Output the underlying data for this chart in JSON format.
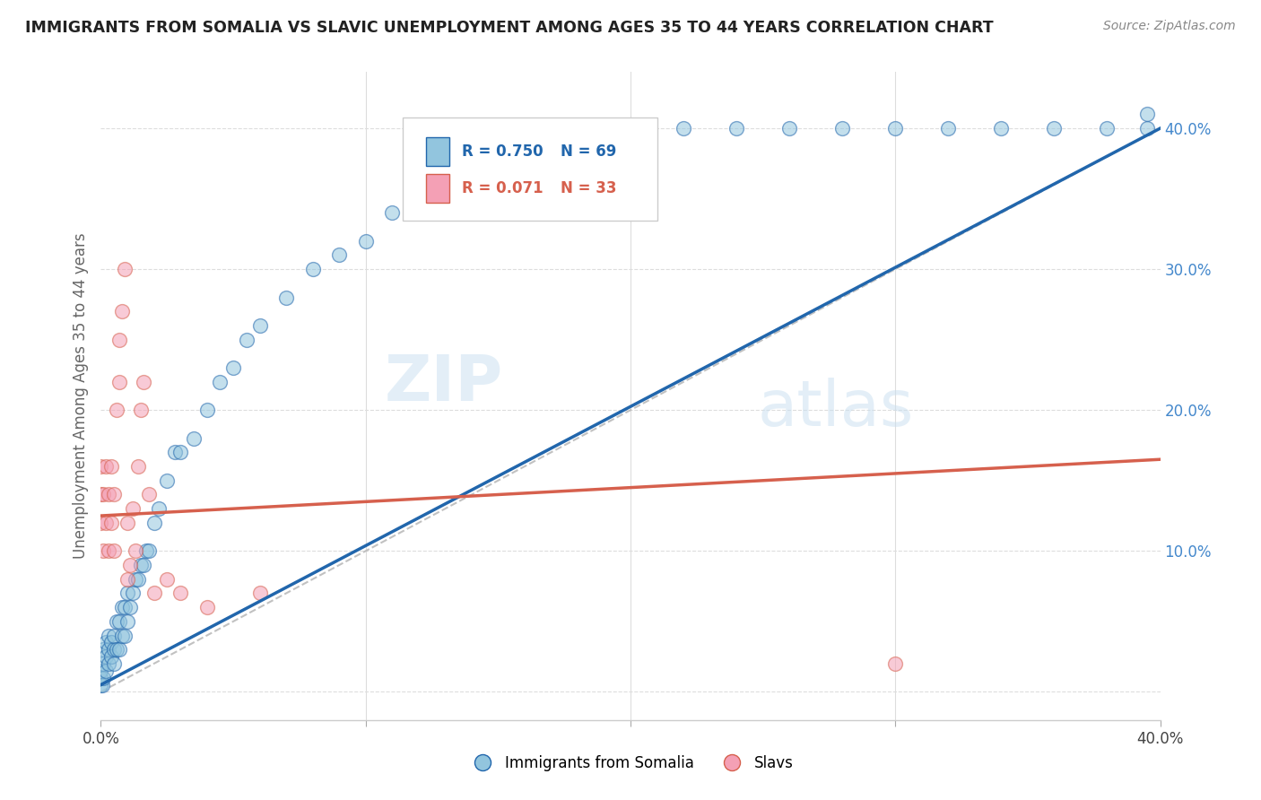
{
  "title": "IMMIGRANTS FROM SOMALIA VS SLAVIC UNEMPLOYMENT AMONG AGES 35 TO 44 YEARS CORRELATION CHART",
  "source": "Source: ZipAtlas.com",
  "ylabel": "Unemployment Among Ages 35 to 44 years",
  "xlim": [
    0.0,
    0.4
  ],
  "ylim": [
    -0.02,
    0.44
  ],
  "legend_somalia_R": "0.750",
  "legend_somalia_N": "69",
  "legend_slavs_R": "0.071",
  "legend_slavs_N": "33",
  "color_somalia": "#92c5de",
  "color_slavs": "#f4a0b5",
  "color_somalia_line": "#2166ac",
  "color_slavs_line": "#d6604d",
  "color_regression_dashed": "#bbbbbb",
  "watermark_zip": "ZIP",
  "watermark_atlas": "atlas",
  "somalia_x": [
    0.0,
    0.0,
    0.0,
    0.0005,
    0.001,
    0.001,
    0.001,
    0.002,
    0.002,
    0.002,
    0.003,
    0.003,
    0.003,
    0.004,
    0.004,
    0.005,
    0.005,
    0.005,
    0.006,
    0.006,
    0.007,
    0.007,
    0.008,
    0.008,
    0.009,
    0.009,
    0.01,
    0.01,
    0.011,
    0.012,
    0.013,
    0.014,
    0.015,
    0.016,
    0.017,
    0.018,
    0.02,
    0.022,
    0.025,
    0.028,
    0.03,
    0.035,
    0.04,
    0.045,
    0.05,
    0.055,
    0.06,
    0.07,
    0.08,
    0.09,
    0.1,
    0.11,
    0.12,
    0.13,
    0.14,
    0.16,
    0.18,
    0.2,
    0.22,
    0.24,
    0.26,
    0.28,
    0.3,
    0.32,
    0.34,
    0.36,
    0.38,
    0.395,
    0.395
  ],
  "somalia_y": [
    0.005,
    0.01,
    0.015,
    0.005,
    0.01,
    0.02,
    0.03,
    0.015,
    0.025,
    0.035,
    0.02,
    0.03,
    0.04,
    0.025,
    0.035,
    0.02,
    0.03,
    0.04,
    0.03,
    0.05,
    0.03,
    0.05,
    0.04,
    0.06,
    0.04,
    0.06,
    0.05,
    0.07,
    0.06,
    0.07,
    0.08,
    0.08,
    0.09,
    0.09,
    0.1,
    0.1,
    0.12,
    0.13,
    0.15,
    0.17,
    0.17,
    0.18,
    0.2,
    0.22,
    0.23,
    0.25,
    0.26,
    0.28,
    0.3,
    0.31,
    0.32,
    0.34,
    0.35,
    0.36,
    0.37,
    0.38,
    0.39,
    0.4,
    0.4,
    0.4,
    0.4,
    0.4,
    0.4,
    0.4,
    0.4,
    0.4,
    0.4,
    0.4,
    0.41
  ],
  "slavs_x": [
    0.0,
    0.0,
    0.0,
    0.001,
    0.001,
    0.002,
    0.002,
    0.003,
    0.003,
    0.004,
    0.004,
    0.005,
    0.005,
    0.006,
    0.007,
    0.007,
    0.008,
    0.009,
    0.01,
    0.01,
    0.011,
    0.012,
    0.013,
    0.014,
    0.015,
    0.016,
    0.018,
    0.02,
    0.025,
    0.03,
    0.04,
    0.06,
    0.3
  ],
  "slavs_y": [
    0.12,
    0.14,
    0.16,
    0.1,
    0.14,
    0.12,
    0.16,
    0.1,
    0.14,
    0.12,
    0.16,
    0.1,
    0.14,
    0.2,
    0.22,
    0.25,
    0.27,
    0.3,
    0.08,
    0.12,
    0.09,
    0.13,
    0.1,
    0.16,
    0.2,
    0.22,
    0.14,
    0.07,
    0.08,
    0.07,
    0.06,
    0.07,
    0.02
  ],
  "som_line_x0": 0.0,
  "som_line_y0": 0.005,
  "som_line_x1": 0.4,
  "som_line_y1": 0.4,
  "slav_line_x0": 0.0,
  "slav_line_y0": 0.125,
  "slav_line_x1": 0.4,
  "slav_line_y1": 0.165
}
